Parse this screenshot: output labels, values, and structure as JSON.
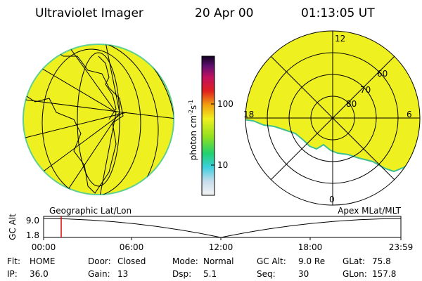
{
  "header": {
    "title": "Ultraviolet Imager",
    "date": "20 Apr 00",
    "time": "01:13:05 UT"
  },
  "colorbar": {
    "unit": "photon cm",
    "exp1": "-2",
    "mid": "s",
    "exp2": "-1",
    "ticks": [
      "100",
      "10"
    ]
  },
  "polar": {
    "labels": {
      "top": "12",
      "bottom": "0",
      "left": "18",
      "right": "6"
    },
    "rings": [
      "60",
      "70",
      "80"
    ]
  },
  "projections": {
    "left": "Geographic Lat/Lon",
    "right": "Apex MLat/MLT"
  },
  "timeline": {
    "axis_label": "GC Alt",
    "yticks": [
      "9.0",
      "1.8"
    ],
    "xticks": [
      "00:00",
      "06:00",
      "12:00",
      "18:00",
      "23:59"
    ]
  },
  "footer": {
    "rows": [
      [
        {
          "label": "Flt:",
          "value": "HOME"
        },
        {
          "label": "Door:",
          "value": "Closed"
        },
        {
          "label": "Mode:",
          "value": "Normal"
        },
        {
          "label": "GC Alt:",
          "value": "9.0 Re"
        },
        {
          "label": "GLat:",
          "value": "75.8"
        }
      ],
      [
        {
          "label": "IP:",
          "value": "36.0"
        },
        {
          "label": "Gain:",
          "value": "13"
        },
        {
          "label": "Dsp:",
          "value": "5.1"
        },
        {
          "label": "Seq:",
          "value": "30"
        },
        {
          "label": "GLon:",
          "value": "157.8"
        }
      ]
    ]
  }
}
